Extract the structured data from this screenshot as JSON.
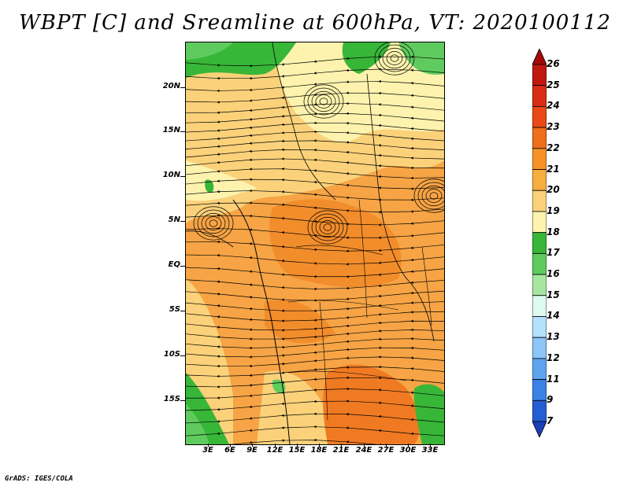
{
  "title": "WBPT [C] and Sreamline at 600hPa, VT: 2020100112",
  "map": {
    "lat_labels": [
      "20N",
      "15N",
      "10N",
      "5N",
      "EQ",
      "5S",
      "10S",
      "15S"
    ],
    "lon_labels": [
      "3E",
      "6E",
      "9E",
      "12E",
      "15E",
      "18E",
      "21E",
      "24E",
      "27E",
      "30E",
      "33E"
    ]
  },
  "colorbar": {
    "levels": [
      "26",
      "25",
      "24",
      "23",
      "22",
      "21",
      "20",
      "19",
      "18",
      "17",
      "16",
      "15",
      "14",
      "13",
      "12",
      "11",
      "9",
      "7"
    ],
    "colors": [
      "#a50a0a",
      "#c0180f",
      "#d82d14",
      "#ea4a18",
      "#f06e1c",
      "#f69226",
      "#f7ae3e",
      "#fbd27a",
      "#fdf3ae",
      "#38b638",
      "#5fcb5f",
      "#a7e6a0",
      "#def9ef",
      "#b4e1fb",
      "#8cc5f6",
      "#5fa4ef",
      "#3b82e7",
      "#245ed2",
      "#1a40b8"
    ]
  },
  "credit": "GrADS: IGES/COLA"
}
